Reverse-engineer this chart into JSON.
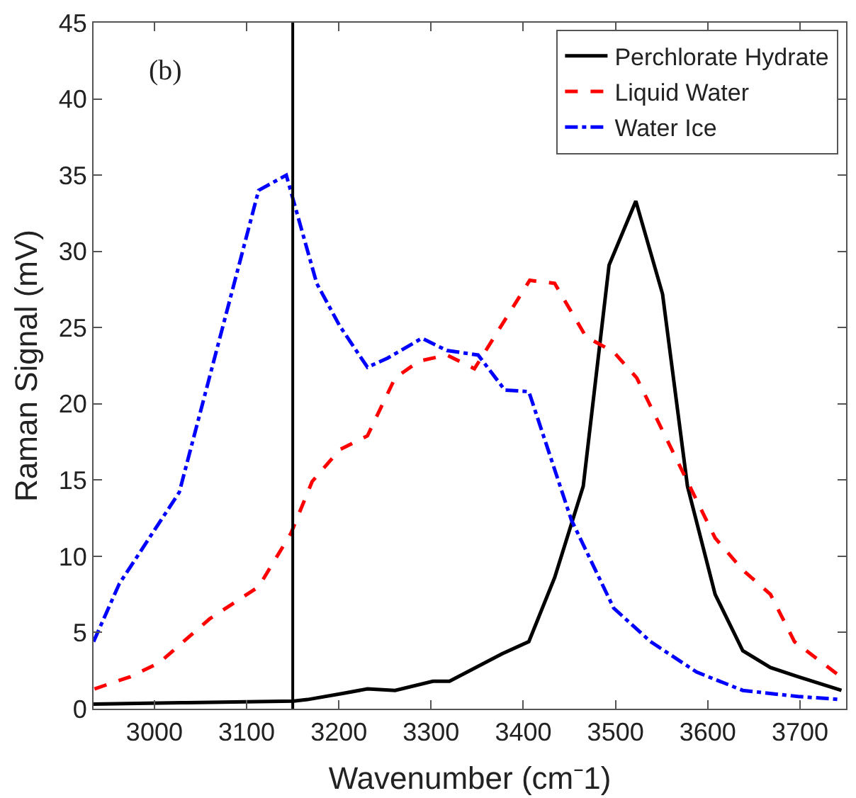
{
  "chart_data": {
    "type": "line",
    "xlabel": "Wavenumber (cm⁻1)",
    "ylabel": "Raman Signal (mV)",
    "annotations": [
      "(b)"
    ],
    "xlim": [
      2934,
      3750
    ],
    "xticks": [
      3000,
      3100,
      3200,
      3300,
      3400,
      3500,
      3600,
      3700
    ],
    "ylim": [
      0,
      45
    ],
    "yticks": [
      0,
      5,
      10,
      15,
      20,
      25,
      30,
      35,
      40,
      45
    ],
    "legend": "top right",
    "marker": "none",
    "ref_lines": [
      {
        "axis": "x",
        "value": 3150,
        "color": "#000000"
      }
    ],
    "series": [
      {
        "name": "Perchlorate Hydrate",
        "color": "#000000",
        "line_style": "solid",
        "x": [
          2934,
          3035,
          3151,
          3166,
          3204,
          3231,
          3261,
          3302,
          3320,
          3377,
          3406,
          3434,
          3465,
          3493,
          3522,
          3551,
          3578,
          3608,
          3638,
          3668,
          3698,
          3745
        ],
        "values": [
          0.3,
          0.4,
          0.5,
          0.6,
          1.0,
          1.3,
          1.2,
          1.8,
          1.8,
          3.6,
          4.4,
          8.6,
          14.6,
          29.1,
          33.3,
          27.2,
          14.6,
          7.5,
          3.8,
          2.7,
          2.1,
          1.2
        ]
      },
      {
        "name": "Liquid Water",
        "color": "#ff0000",
        "line_style": "dashed",
        "x": [
          2935,
          2974,
          3005,
          3060,
          3113,
          3148,
          3171,
          3201,
          3231,
          3261,
          3287,
          3317,
          3347,
          3407,
          3434,
          3468,
          3498,
          3523,
          3578,
          3608,
          3638,
          3668,
          3694,
          3742
        ],
        "values": [
          1.3,
          2.1,
          3.0,
          5.9,
          8.0,
          11.5,
          14.9,
          17.0,
          17.9,
          21.7,
          22.8,
          23.2,
          22.3,
          28.1,
          27.9,
          24.4,
          23.4,
          21.7,
          14.9,
          11.2,
          9.1,
          7.5,
          4.4,
          2.2
        ]
      },
      {
        "name": "Water Ice",
        "color": "#0000ff",
        "line_style": "dashdot",
        "x": [
          2934,
          2962,
          3027,
          3050,
          3113,
          3143,
          3176,
          3201,
          3231,
          3253,
          3290,
          3317,
          3351,
          3380,
          3406,
          3452,
          3498,
          3538,
          3588,
          3638,
          3698,
          3745
        ],
        "values": [
          4.4,
          8.2,
          14.2,
          19.5,
          34.0,
          35.0,
          27.9,
          25.1,
          22.4,
          23.0,
          24.3,
          23.5,
          23.2,
          20.9,
          20.8,
          12.4,
          6.6,
          4.4,
          2.4,
          1.2,
          0.8,
          0.6
        ]
      }
    ]
  }
}
